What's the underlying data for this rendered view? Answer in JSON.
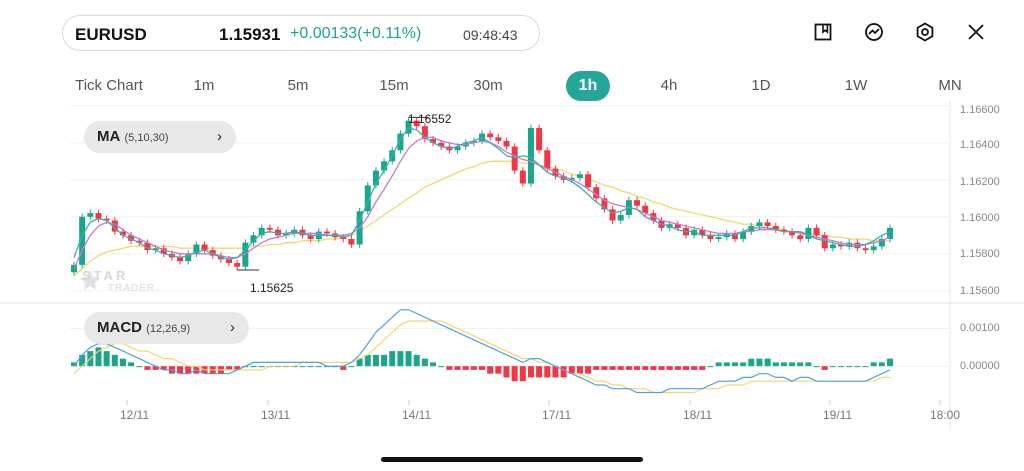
{
  "header": {
    "symbol": "EURUSD",
    "price": "1.15931",
    "change": "+0.00133(+0.11%)",
    "time": "09:48:43"
  },
  "toolbar_icons": [
    "bookmark-icon",
    "trend-icon",
    "settings-icon",
    "close-icon"
  ],
  "timeframes": [
    "Tick Chart",
    "1m",
    "5m",
    "15m",
    "30m",
    "1h",
    "4h",
    "1D",
    "1W",
    "MN"
  ],
  "active_timeframe": "1h",
  "indicators": {
    "ma": {
      "name": "MA",
      "params": "(5,10,30)"
    },
    "macd": {
      "name": "MACD",
      "params": "(12,26,9)"
    }
  },
  "annotations": {
    "high": "1.16552",
    "low": "1.15625"
  },
  "watermark": {
    "brand": "STAR",
    "sub": "TRADER"
  },
  "colors": {
    "up": "#1aa68c",
    "down": "#f23645",
    "ma5": "#3bb1a4",
    "ma10": "#c07ad8",
    "ma30": "#f0d86b",
    "macd_line": "#4aa3e0",
    "signal_line": "#f0d86b",
    "accent": "#26a69a"
  },
  "chart_data": {
    "type": "candlestick",
    "price_axis": {
      "ticks": [
        "1.16600",
        "1.16400",
        "1.16200",
        "1.16000",
        "1.15800",
        "1.15600"
      ],
      "range": [
        1.1555,
        1.1661
      ]
    },
    "macd_axis": {
      "ticks": [
        "0.00100",
        "0.00000"
      ],
      "range": [
        -0.0009,
        0.0016
      ]
    },
    "x_labels": [
      "12/11",
      "13/11",
      "14/11",
      "17/11",
      "18/11",
      "19/11",
      "18:00"
    ],
    "close_series": [
      1.1574,
      1.16,
      1.1602,
      1.1599,
      1.1598,
      1.1592,
      1.159,
      1.1587,
      1.1586,
      1.1582,
      1.1583,
      1.158,
      1.1578,
      1.1576,
      1.158,
      1.1585,
      1.1582,
      1.1579,
      1.1577,
      1.1575,
      1.1573,
      1.1586,
      1.159,
      1.1594,
      1.1593,
      1.159,
      1.1591,
      1.1593,
      1.159,
      1.1588,
      1.1592,
      1.1591,
      1.1589,
      1.1588,
      1.1585,
      1.1603,
      1.1617,
      1.1625,
      1.163,
      1.1636,
      1.1645,
      1.1652,
      1.1649,
      1.1642,
      1.164,
      1.1638,
      1.1636,
      1.1638,
      1.164,
      1.1641,
      1.1645,
      1.1643,
      1.1641,
      1.1638,
      1.1625,
      1.1618,
      1.1648,
      1.1636,
      1.1626,
      1.1622,
      1.162,
      1.1621,
      1.1623,
      1.1616,
      1.161,
      1.1604,
      1.1598,
      1.1601,
      1.1609,
      1.1606,
      1.1602,
      1.1598,
      1.1594,
      1.1596,
      1.1594,
      1.159,
      1.1593,
      1.159,
      1.1588,
      1.1589,
      1.1591,
      1.1588,
      1.1592,
      1.1595,
      1.1597,
      1.1595,
      1.1593,
      1.1592,
      1.159,
      1.1588,
      1.1594,
      1.159,
      1.1583,
      1.1585,
      1.1584,
      1.1586,
      1.1583,
      1.1582,
      1.1584,
      1.1588,
      1.1594
    ],
    "ma5_series": [
      1.1578,
      1.159,
      1.1597,
      1.1599,
      1.1598,
      1.1594,
      1.159,
      1.1588,
      1.1586,
      1.1583,
      1.1582,
      1.158,
      1.1579,
      1.1578,
      1.1579,
      1.1581,
      1.1582,
      1.158,
      1.1578,
      1.1577,
      1.1578,
      1.1582,
      1.1587,
      1.1591,
      1.1592,
      1.1591,
      1.1591,
      1.1592,
      1.1591,
      1.159,
      1.159,
      1.159,
      1.159,
      1.1589,
      1.159,
      1.1598,
      1.1608,
      1.1618,
      1.1625,
      1.1633,
      1.1642,
      1.1648,
      1.1647,
      1.1643,
      1.164,
      1.1638,
      1.1637,
      1.1638,
      1.164,
      1.1641,
      1.1643,
      1.164,
      1.1637,
      1.1633,
      1.1632,
      1.1633,
      1.1632,
      1.1628,
      1.1624,
      1.1622,
      1.1621,
      1.1619,
      1.1616,
      1.1612,
      1.1608,
      1.1605,
      1.1602,
      1.1603,
      1.1605,
      1.1604,
      1.16,
      1.1598,
      1.1596,
      1.1595,
      1.1593,
      1.1592,
      1.1592,
      1.159,
      1.159,
      1.159,
      1.159,
      1.159,
      1.1592,
      1.1594,
      1.1594,
      1.1594,
      1.1593,
      1.1592,
      1.1592,
      1.1592,
      1.159,
      1.1588,
      1.1587,
      1.1586,
      1.1585,
      1.1584,
      1.1584,
      1.1585,
      1.1587,
      1.159,
      1.1592
    ],
    "ma10_series": [
      1.1572,
      1.1582,
      1.159,
      1.1595,
      1.1597,
      1.1596,
      1.1593,
      1.159,
      1.1588,
      1.1586,
      1.1584,
      1.1582,
      1.1581,
      1.158,
      1.158,
      1.158,
      1.158,
      1.158,
      1.1579,
      1.1578,
      1.1578,
      1.158,
      1.1583,
      1.1586,
      1.1588,
      1.1589,
      1.159,
      1.1591,
      1.1591,
      1.1591,
      1.1591,
      1.159,
      1.159,
      1.159,
      1.1591,
      1.1594,
      1.16,
      1.1608,
      1.1615,
      1.1622,
      1.163,
      1.1637,
      1.1641,
      1.1643,
      1.1643,
      1.1641,
      1.164,
      1.1639,
      1.1639,
      1.164,
      1.1641,
      1.164,
      1.1638,
      1.1635,
      1.1633,
      1.1631,
      1.163,
      1.1628,
      1.1626,
      1.1624,
      1.1622,
      1.162,
      1.1618,
      1.1615,
      1.1612,
      1.1609,
      1.1607,
      1.1606,
      1.1605,
      1.1604,
      1.1602,
      1.16,
      1.1598,
      1.1597,
      1.1596,
      1.1595,
      1.1594,
      1.1593,
      1.1592,
      1.1591,
      1.1591,
      1.1591,
      1.1592,
      1.1592,
      1.1593,
      1.1593,
      1.1593,
      1.1592,
      1.1592,
      1.1591,
      1.159,
      1.1589,
      1.1588,
      1.1587,
      1.1586,
      1.1585,
      1.1585,
      1.1585,
      1.1586,
      1.1587,
      1.1589
    ],
    "ma30_series": [
      1.1568,
      1.1572,
      1.1576,
      1.1579,
      1.1581,
      1.1582,
      1.1583,
      1.1584,
      1.1584,
      1.1584,
      1.1584,
      1.1584,
      1.1584,
      1.1583,
      1.1583,
      1.1583,
      1.1583,
      1.1583,
      1.1583,
      1.1583,
      1.1583,
      1.1583,
      1.1584,
      1.1584,
      1.1585,
      1.1585,
      1.1586,
      1.1586,
      1.1587,
      1.1587,
      1.1587,
      1.1588,
      1.1588,
      1.1589,
      1.159,
      1.1592,
      1.1595,
      1.1598,
      1.1601,
      1.1604,
      1.1607,
      1.161,
      1.1613,
      1.1616,
      1.1618,
      1.162,
      1.1622,
      1.1624,
      1.1626,
      1.1627,
      1.1629,
      1.163,
      1.163,
      1.163,
      1.163,
      1.1629,
      1.1629,
      1.1628,
      1.1627,
      1.1626,
      1.1625,
      1.1623,
      1.1622,
      1.162,
      1.1619,
      1.1617,
      1.1616,
      1.1614,
      1.1613,
      1.1611,
      1.161,
      1.1608,
      1.1607,
      1.1605,
      1.1604,
      1.1603,
      1.1602,
      1.1601,
      1.16,
      1.1599,
      1.1598,
      1.1597,
      1.1596,
      1.1596,
      1.1595,
      1.1594,
      1.1594,
      1.1593,
      1.1592,
      1.1592,
      1.1591,
      1.159,
      1.159,
      1.1589,
      1.1589,
      1.1588,
      1.1588,
      1.1588,
      1.1587,
      1.1587,
      1.1587
    ],
    "macd_hist": [
      0.0001,
      0.0003,
      0.0004,
      0.0005,
      0.0004,
      0.0003,
      0.0002,
      0.0001,
      0.0,
      -0.0001,
      -0.0001,
      -0.0001,
      -0.0002,
      -0.0002,
      -0.0002,
      -0.0002,
      -0.0002,
      -0.0002,
      -0.0002,
      -0.0001,
      -0.0001,
      0.0,
      0.0,
      0.0,
      0.0,
      0.0,
      0.0,
      0.0,
      0.0,
      0.0,
      0.0,
      0.0,
      0.0,
      -0.0001,
      0.0,
      0.0002,
      0.0003,
      0.0003,
      0.0003,
      0.0004,
      0.0004,
      0.0004,
      0.0003,
      0.0002,
      0.0001,
      0.0,
      -0.0001,
      -0.0001,
      -0.0001,
      -0.0001,
      -0.0001,
      -0.0002,
      -0.0002,
      -0.0003,
      -0.0004,
      -0.0004,
      -0.0003,
      -0.0003,
      -0.0003,
      -0.0003,
      -0.0003,
      -0.0002,
      -0.0002,
      -0.0002,
      -0.0001,
      -0.0001,
      -0.0001,
      -0.0001,
      -0.0001,
      -0.0001,
      -0.0001,
      -0.0001,
      -0.0001,
      -0.0001,
      -0.0001,
      -0.0001,
      -0.0001,
      -0.0001,
      0.0,
      0.0001,
      0.0001,
      0.0001,
      0.0001,
      0.0002,
      0.0002,
      0.0002,
      0.0001,
      0.0001,
      0.0001,
      0.0001,
      0.0001,
      0.0,
      -0.0001,
      0.0,
      0.0,
      0.0,
      0.0,
      0.0,
      0.0001,
      0.0001,
      0.0002
    ],
    "macd_line": [
      0.0,
      0.0003,
      0.0005,
      0.0006,
      0.0006,
      0.0005,
      0.0004,
      0.0003,
      0.0002,
      0.0001,
      0.0,
      -0.0001,
      -0.0001,
      -0.0002,
      -0.0002,
      -0.0001,
      -0.0002,
      -0.0002,
      -0.0002,
      -0.0002,
      -0.0001,
      0.0,
      0.0001,
      0.0001,
      0.0001,
      0.0001,
      0.0001,
      0.0001,
      0.0001,
      0.0001,
      0.0001,
      0.0,
      0.0,
      0.0,
      0.0001,
      0.0003,
      0.0006,
      0.0009,
      0.0011,
      0.0013,
      0.0015,
      0.0015,
      0.0014,
      0.0013,
      0.0012,
      0.0011,
      0.001,
      0.0009,
      0.0008,
      0.0007,
      0.0006,
      0.0005,
      0.0004,
      0.0003,
      0.0002,
      0.0001,
      0.0002,
      0.0002,
      0.0001,
      0.0,
      -0.0001,
      -0.0002,
      -0.0003,
      -0.0004,
      -0.0005,
      -0.0005,
      -0.0006,
      -0.0006,
      -0.0006,
      -0.0007,
      -0.0007,
      -0.0007,
      -0.0007,
      -0.0006,
      -0.0006,
      -0.0006,
      -0.0006,
      -0.0006,
      -0.0005,
      -0.0004,
      -0.0004,
      -0.0004,
      -0.0003,
      -0.0003,
      -0.0002,
      -0.0002,
      -0.0003,
      -0.0003,
      -0.0004,
      -0.0003,
      -0.0003,
      -0.0004,
      -0.0004,
      -0.0004,
      -0.0004,
      -0.0004,
      -0.0004,
      -0.0004,
      -0.0003,
      -0.0002,
      -0.0001
    ],
    "signal_line": [
      -0.0002,
      0.0,
      0.0002,
      0.0004,
      0.0005,
      0.0006,
      0.0006,
      0.0005,
      0.0004,
      0.0004,
      0.0003,
      0.0002,
      0.0002,
      0.0001,
      0.0,
      0.0,
      -0.0001,
      -0.0001,
      -0.0001,
      -0.0001,
      -0.0001,
      -0.0001,
      -0.0001,
      -0.0001,
      0.0,
      0.0,
      0.0,
      0.0,
      0.0001,
      0.0001,
      0.0001,
      0.0001,
      0.0001,
      0.0001,
      0.0001,
      0.0002,
      0.0003,
      0.0005,
      0.0007,
      0.0009,
      0.0011,
      0.0012,
      0.0012,
      0.0012,
      0.0012,
      0.0012,
      0.0011,
      0.001,
      0.0009,
      0.0008,
      0.0007,
      0.0006,
      0.0005,
      0.0004,
      0.0003,
      0.0002,
      0.0002,
      0.0001,
      0.0001,
      0.0,
      -0.0001,
      -0.0002,
      -0.0002,
      -0.0003,
      -0.0004,
      -0.0004,
      -0.0005,
      -0.0005,
      -0.0006,
      -0.0006,
      -0.0006,
      -0.0007,
      -0.0007,
      -0.0007,
      -0.0007,
      -0.0007,
      -0.0007,
      -0.0006,
      -0.0006,
      -0.0006,
      -0.0005,
      -0.0005,
      -0.0005,
      -0.0004,
      -0.0004,
      -0.0004,
      -0.0004,
      -0.0004,
      -0.0004,
      -0.0004,
      -0.0004,
      -0.0004,
      -0.0004,
      -0.0004,
      -0.0004,
      -0.0004,
      -0.0004,
      -0.0004,
      -0.0004,
      -0.0003,
      -0.0003
    ]
  }
}
